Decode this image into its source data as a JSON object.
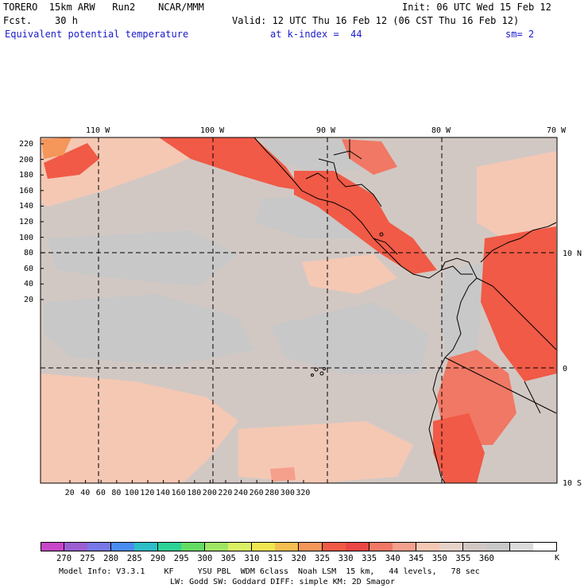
{
  "header": {
    "model": "TORERO  15km ARW   Run2    NCAR/MMM",
    "init": "Init: 06 UTC Wed 15 Feb 12",
    "fcst": "Fcst.    30 h",
    "valid": "Valid: 12 UTC Thu 16 Feb 12 (06 CST Thu 16 Feb 12)",
    "field": "Equivalent potential temperature",
    "level": "at k-index =  44",
    "smooth": "sm= 2"
  },
  "top_lon_labels": [
    "110 W",
    "100 W",
    "90 W",
    "80 W",
    "70 W"
  ],
  "right_lat_labels": [
    "10 N",
    "0",
    "10 S"
  ],
  "y_ticks": [
    "220",
    "200",
    "180",
    "160",
    "140",
    "120",
    "100",
    "80",
    "60",
    "40",
    "20"
  ],
  "x_ticks": [
    "20",
    "40",
    "60",
    "80",
    "100",
    "120",
    "140",
    "160",
    "180",
    "200",
    "220",
    "240",
    "260",
    "280",
    "300",
    "320"
  ],
  "colorbar": {
    "colors": [
      "#c846c8",
      "#9b5fd2",
      "#7878e6",
      "#4b8cf0",
      "#2dbec8",
      "#2dd296",
      "#64dc64",
      "#a0e664",
      "#dcf064",
      "#f0e650",
      "#f5be50",
      "#f5965a",
      "#f05a46",
      "#eb4646",
      "#f07864",
      "#f5a08c",
      "#f5c8b4",
      "#e6d2c8",
      "#d2c8c3",
      "#c8c8c8",
      "#dcdcdc",
      "#ffffff"
    ],
    "labels": [
      "270",
      "275",
      "280",
      "285",
      "290",
      "295",
      "300",
      "305",
      "310",
      "315",
      "320",
      "325",
      "330",
      "335",
      "340",
      "345",
      "350",
      "355",
      "360"
    ],
    "unit": "K"
  },
  "footer": {
    "line1": "Model Info: V3.3.1    KF     YSU PBL  WDM 6class  Noah LSM  15 km,   44 levels,   78 sec",
    "line2": "LW: Godd SW: Goddard DIFF: simple KM: 2D Smagor"
  }
}
